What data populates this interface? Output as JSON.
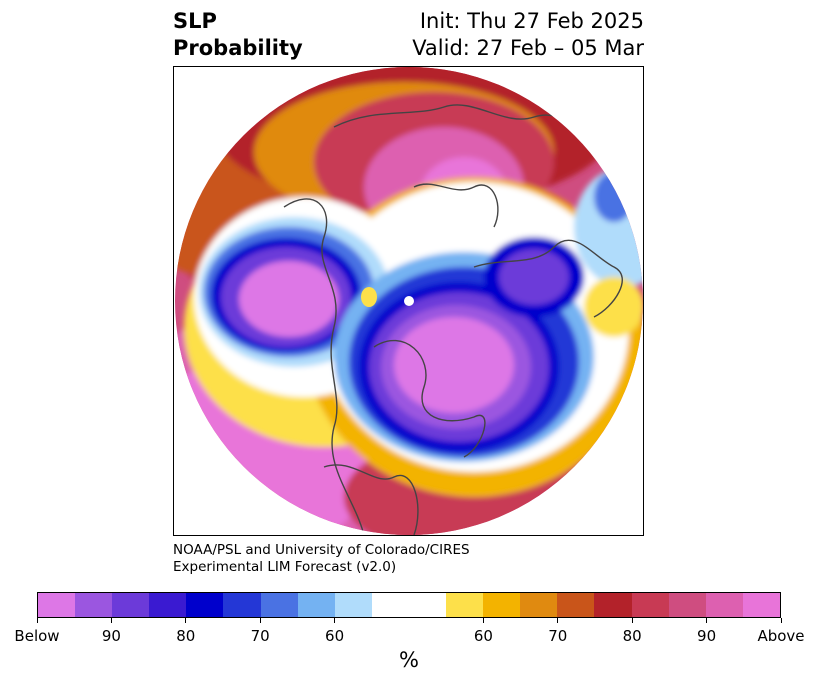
{
  "title": {
    "left_line1": "SLP",
    "left_line2": "Probability",
    "right_line1": "Init: Thu 27 Feb 2025",
    "right_line2": "Valid: 27 Feb – 05 Mar"
  },
  "credit": {
    "line1": "NOAA/PSL and University of Colorado/CIRES",
    "line2": "Experimental LIM Forecast (v2.0)"
  },
  "colorbar": {
    "colors": [
      "#dd77e6",
      "#9b56e0",
      "#6c3ad9",
      "#3a1ad1",
      "#0000cc",
      "#2437d6",
      "#4a72e3",
      "#74b2f2",
      "#b0dcfb",
      "#ffffff",
      "#ffffff",
      "#fde04a",
      "#f3b300",
      "#e08a10",
      "#c9551a",
      "#b3222a",
      "#c83a54",
      "#cf4d80",
      "#dd60b0",
      "#e874d9"
    ],
    "labels": [
      "Below",
      "90",
      "80",
      "70",
      "60",
      "60",
      "70",
      "80",
      "90",
      "Above"
    ],
    "unit": "%"
  }
}
